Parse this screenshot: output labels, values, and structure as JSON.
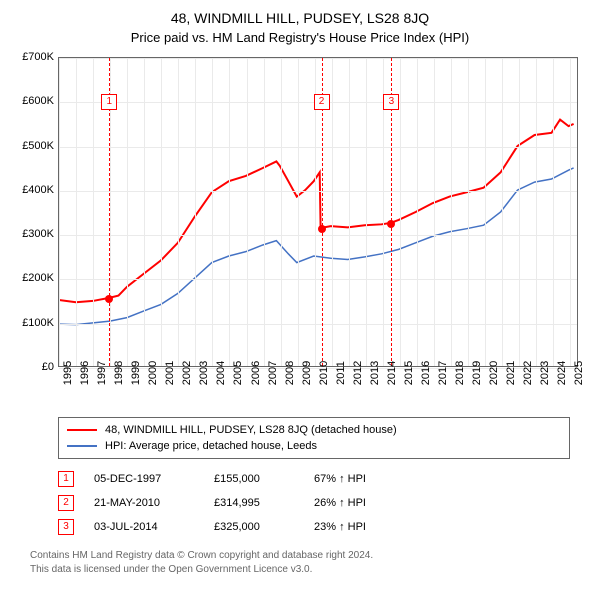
{
  "title": "48, WINDMILL HILL, PUDSEY, LS28 8JQ",
  "subtitle": "Price paid vs. HM Land Registry's House Price Index (HPI)",
  "chart": {
    "type": "line",
    "xlim": [
      1995,
      2025.5
    ],
    "ylim": [
      0,
      700000
    ],
    "ytick_step": 100000,
    "yticks": [
      "£0",
      "£100K",
      "£200K",
      "£300K",
      "£400K",
      "£500K",
      "£600K",
      "£700K"
    ],
    "xticks": [
      1995,
      1996,
      1997,
      1998,
      1999,
      2000,
      2001,
      2002,
      2003,
      2004,
      2005,
      2006,
      2007,
      2008,
      2009,
      2010,
      2011,
      2012,
      2013,
      2014,
      2015,
      2016,
      2017,
      2018,
      2019,
      2020,
      2021,
      2022,
      2023,
      2024,
      2025
    ],
    "background_color": "#ffffff",
    "grid_color": "#eaeaea",
    "border_color": "#666666",
    "series": [
      {
        "name": "48, WINDMILL HILL, PUDSEY, LS28 8JQ (detached house)",
        "color": "#ff0000",
        "line_width": 2,
        "points": [
          [
            1995.0,
            150000
          ],
          [
            1996.0,
            145000
          ],
          [
            1997.0,
            148000
          ],
          [
            1997.95,
            155000
          ],
          [
            1998.5,
            160000
          ],
          [
            1999.0,
            180000
          ],
          [
            2000.0,
            210000
          ],
          [
            2001.0,
            240000
          ],
          [
            2002.0,
            280000
          ],
          [
            2003.0,
            340000
          ],
          [
            2004.0,
            395000
          ],
          [
            2005.0,
            420000
          ],
          [
            2006.0,
            432000
          ],
          [
            2007.0,
            450000
          ],
          [
            2007.8,
            465000
          ],
          [
            2008.0,
            455000
          ],
          [
            2008.5,
            420000
          ],
          [
            2009.0,
            385000
          ],
          [
            2009.5,
            400000
          ],
          [
            2010.0,
            420000
          ],
          [
            2010.35,
            440000
          ],
          [
            2010.4,
            314995
          ],
          [
            2010.6,
            315000
          ],
          [
            2011.0,
            318000
          ],
          [
            2012.0,
            315000
          ],
          [
            2013.0,
            320000
          ],
          [
            2014.0,
            322000
          ],
          [
            2014.5,
            325000
          ],
          [
            2015.0,
            332000
          ],
          [
            2016.0,
            350000
          ],
          [
            2017.0,
            370000
          ],
          [
            2018.0,
            385000
          ],
          [
            2019.0,
            395000
          ],
          [
            2020.0,
            405000
          ],
          [
            2021.0,
            440000
          ],
          [
            2022.0,
            500000
          ],
          [
            2023.0,
            525000
          ],
          [
            2024.0,
            530000
          ],
          [
            2024.5,
            560000
          ],
          [
            2025.0,
            545000
          ],
          [
            2025.3,
            550000
          ]
        ]
      },
      {
        "name": "HPI: Average price, detached house, Leeds",
        "color": "#4472c4",
        "line_width": 1.5,
        "points": [
          [
            1995.0,
            95000
          ],
          [
            1996.0,
            94000
          ],
          [
            1997.0,
            98000
          ],
          [
            1998.0,
            102000
          ],
          [
            1999.0,
            110000
          ],
          [
            2000.0,
            125000
          ],
          [
            2001.0,
            140000
          ],
          [
            2002.0,
            165000
          ],
          [
            2003.0,
            200000
          ],
          [
            2004.0,
            235000
          ],
          [
            2005.0,
            250000
          ],
          [
            2006.0,
            260000
          ],
          [
            2007.0,
            275000
          ],
          [
            2007.8,
            285000
          ],
          [
            2008.5,
            255000
          ],
          [
            2009.0,
            235000
          ],
          [
            2010.0,
            250000
          ],
          [
            2011.0,
            245000
          ],
          [
            2012.0,
            242000
          ],
          [
            2013.0,
            248000
          ],
          [
            2014.0,
            255000
          ],
          [
            2015.0,
            265000
          ],
          [
            2016.0,
            280000
          ],
          [
            2017.0,
            295000
          ],
          [
            2018.0,
            305000
          ],
          [
            2019.0,
            312000
          ],
          [
            2020.0,
            320000
          ],
          [
            2021.0,
            350000
          ],
          [
            2022.0,
            400000
          ],
          [
            2023.0,
            418000
          ],
          [
            2024.0,
            425000
          ],
          [
            2025.0,
            445000
          ],
          [
            2025.3,
            450000
          ]
        ]
      }
    ],
    "sale_points": [
      {
        "x": 1997.95,
        "y": 155000,
        "color": "#ff0000"
      },
      {
        "x": 2010.4,
        "y": 314995,
        "color": "#ff0000"
      },
      {
        "x": 2014.5,
        "y": 325000,
        "color": "#ff0000"
      }
    ],
    "reference_lines": [
      {
        "x": 1997.95,
        "label": "1",
        "marker_y": 600000,
        "color": "#ff0000"
      },
      {
        "x": 2010.4,
        "label": "2",
        "marker_y": 600000,
        "color": "#ff0000"
      },
      {
        "x": 2014.5,
        "label": "3",
        "marker_y": 600000,
        "color": "#ff0000"
      }
    ]
  },
  "legend": {
    "border_color": "#666666",
    "items": [
      {
        "color": "#ff0000",
        "label": "48, WINDMILL HILL, PUDSEY, LS28 8JQ (detached house)"
      },
      {
        "color": "#4472c4",
        "label": "HPI: Average price, detached house, Leeds"
      }
    ]
  },
  "events": [
    {
      "marker": "1",
      "date": "05-DEC-1997",
      "price": "£155,000",
      "pct": "67% ↑ HPI"
    },
    {
      "marker": "2",
      "date": "21-MAY-2010",
      "price": "£314,995",
      "pct": "26% ↑ HPI"
    },
    {
      "marker": "3",
      "date": "03-JUL-2014",
      "price": "£325,000",
      "pct": "23% ↑ HPI"
    }
  ],
  "footer": {
    "line1": "Contains HM Land Registry data © Crown copyright and database right 2024.",
    "line2": "This data is licensed under the Open Government Licence v3.0."
  }
}
